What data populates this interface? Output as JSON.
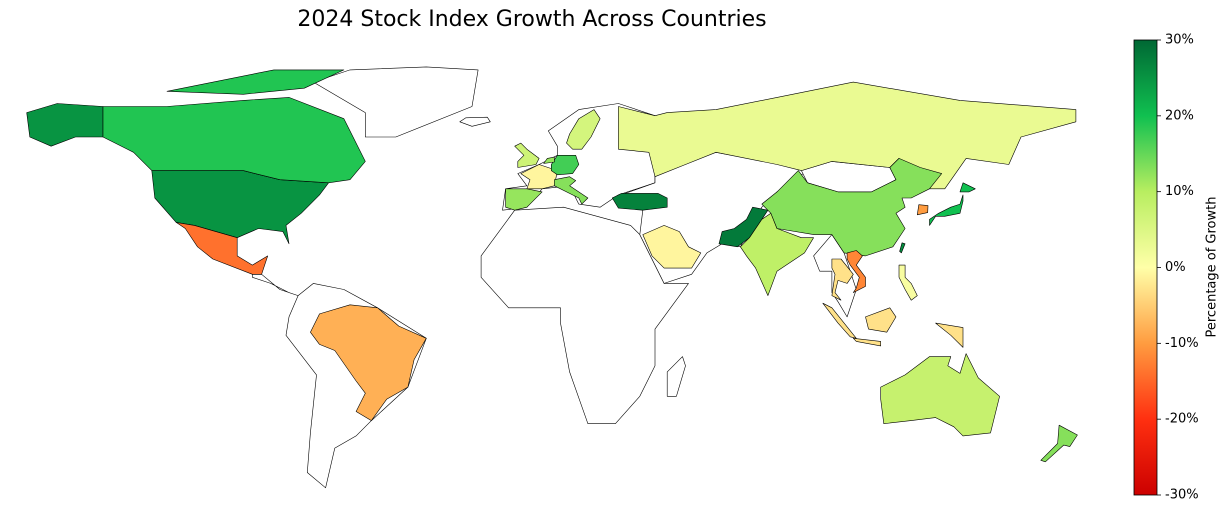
{
  "chart_data": {
    "type": "choropleth",
    "title": "2024 Stock Index Growth Across Countries",
    "values": [
      25,
      19,
      -14,
      -8,
      7,
      -1,
      12,
      17,
      13,
      12,
      6,
      3,
      27,
      -1,
      28,
      9,
      13,
      20,
      -10,
      26,
      -12,
      -3,
      -3,
      1,
      8,
      13
    ],
    "colorscale": [
      "#cc0000",
      "#ff3010",
      "#ff9c40",
      "#ffffa8",
      "#b8ee60",
      "#10c050",
      "#006834"
    ],
    "clim": [
      -30,
      30
    ],
    "cticks": [
      {
        "value": -30,
        "label": "-30%"
      },
      {
        "value": -20,
        "label": "-20%"
      },
      {
        "value": -10,
        "label": "-10%"
      },
      {
        "value": 0,
        "label": "0%"
      },
      {
        "value": 10,
        "label": "10%"
      },
      {
        "value": 20,
        "label": "20%"
      },
      {
        "value": 30,
        "label": "30%"
      }
    ],
    "colorbar_label": "Percentage of Growth"
  }
}
